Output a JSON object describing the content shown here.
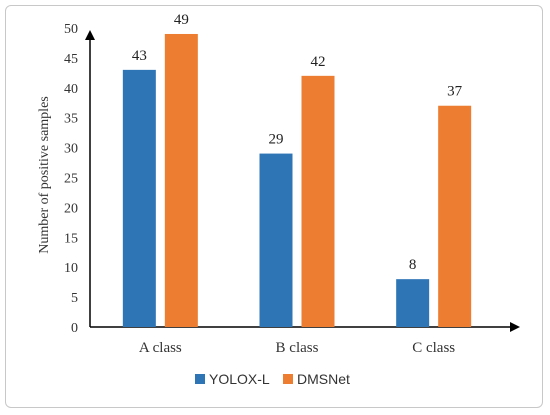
{
  "chart_data": {
    "type": "bar",
    "title": "",
    "xlabel": "",
    "ylabel": "Number of positive samples",
    "categories": [
      "A class",
      "B class",
      "C class"
    ],
    "series": [
      {
        "name": "YOLOX-L",
        "values": [
          43,
          29,
          8
        ],
        "color": "#2e75b6"
      },
      {
        "name": "DMSNet",
        "values": [
          49,
          42,
          37
        ],
        "color": "#ed7d31"
      }
    ],
    "ylim": [
      0,
      50
    ],
    "yticks": [
      "0",
      "5",
      "10",
      "15",
      "20",
      "25",
      "30",
      "35",
      "40",
      "45",
      "50"
    ],
    "grid": false,
    "legend": "bottom-center",
    "data_labels": true
  }
}
